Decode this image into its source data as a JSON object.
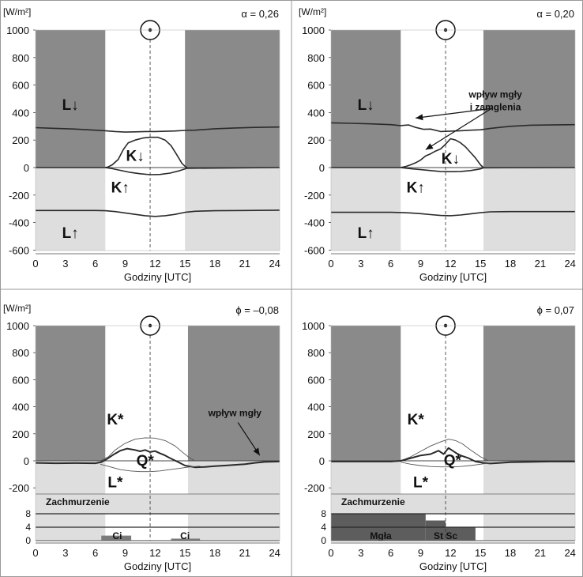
{
  "chart_data": [
    {
      "type": "line",
      "panel": "top-left",
      "unit_label": "[W/m²]",
      "param_label": "α = 0,26",
      "xlabel": "Godziny [UTC]",
      "xticks": [
        0,
        3,
        6,
        9,
        12,
        15,
        18,
        21,
        24
      ],
      "yticks": [
        1000,
        800,
        600,
        400,
        200,
        0,
        -200,
        -400,
        -600
      ],
      "xlim": [
        0,
        24.5
      ],
      "ylim": [
        -600,
        1000
      ],
      "sun_hour": 11.5,
      "night_shading": [
        [
          0,
          7
        ],
        [
          15,
          24.5
        ]
      ],
      "labels": [
        {
          "text": "L↓",
          "x": 3.5,
          "y": 460
        },
        {
          "text": "K↓",
          "x": 10.0,
          "y": 90
        },
        {
          "text": "K↑",
          "x": 8.5,
          "y": -140
        },
        {
          "text": "L↑",
          "x": 3.5,
          "y": -470
        }
      ],
      "series": [
        {
          "x": [
            0,
            2,
            4,
            6,
            7,
            8,
            9,
            10,
            11,
            12,
            13,
            14,
            15,
            16,
            18,
            20,
            22,
            24.5
          ],
          "y": [
            290,
            285,
            280,
            272,
            268,
            262,
            258,
            260,
            262,
            262,
            264,
            266,
            270,
            272,
            282,
            288,
            292,
            295
          ]
        },
        {
          "x": [
            7,
            7.3,
            7.7,
            8.3,
            8.8,
            9.3,
            10,
            10.8,
            11.5,
            12.3,
            13,
            13.6,
            14.2,
            14.7,
            15,
            15.2
          ],
          "y": [
            0,
            5,
            20,
            60,
            130,
            180,
            200,
            215,
            220,
            220,
            200,
            160,
            90,
            30,
            10,
            0
          ]
        },
        {
          "x": [
            0,
            7,
            7.5,
            8.5,
            9.5,
            10.5,
            11.5,
            12.5,
            13.5,
            14.5,
            15.2,
            24.5
          ],
          "y": [
            0,
            0,
            -5,
            -20,
            -35,
            -45,
            -52,
            -50,
            -40,
            -22,
            -5,
            0
          ]
        },
        {
          "x": [
            0,
            3,
            6,
            7,
            8,
            9,
            10,
            11,
            12,
            13,
            14,
            15,
            16,
            18,
            21,
            24.5
          ],
          "y": [
            -312,
            -312,
            -312,
            -314,
            -320,
            -330,
            -340,
            -350,
            -355,
            -350,
            -340,
            -325,
            -318,
            -314,
            -312,
            -310
          ]
        }
      ]
    },
    {
      "type": "line",
      "panel": "top-right",
      "unit_label": "[W/m²]",
      "param_label": "α = 0,20",
      "xlabel": "Godziny [UTC]",
      "xticks": [
        0,
        3,
        6,
        9,
        12,
        15,
        18,
        21,
        24
      ],
      "yticks": [
        1000,
        800,
        600,
        400,
        200,
        0,
        -200,
        -400,
        -600
      ],
      "xlim": [
        0,
        24.5
      ],
      "ylim": [
        -600,
        1000
      ],
      "sun_hour": 11.5,
      "night_shading": [
        [
          0,
          7
        ],
        [
          15.3,
          24.5
        ]
      ],
      "labels": [
        {
          "text": "L↓",
          "x": 3.5,
          "y": 460
        },
        {
          "text": "K↓",
          "x": 12.0,
          "y": 70
        },
        {
          "text": "K↑",
          "x": 8.5,
          "y": -140
        },
        {
          "text": "L↑",
          "x": 3.5,
          "y": -470
        }
      ],
      "annotation": {
        "text": [
          "wpływ mgły",
          "i zamglenia"
        ],
        "x": 16.5,
        "y": 510,
        "arrows": [
          [
            8.5,
            360
          ],
          [
            9.5,
            130
          ]
        ]
      },
      "series": [
        {
          "x": [
            0,
            2,
            4,
            6,
            7,
            7.8,
            8.5,
            9.3,
            10,
            11,
            12,
            13,
            14,
            15,
            16,
            18,
            20,
            22,
            24.5
          ],
          "y": [
            325,
            322,
            318,
            312,
            305,
            310,
            292,
            278,
            280,
            262,
            265,
            268,
            272,
            275,
            285,
            300,
            308,
            310,
            312
          ]
        },
        {
          "x": [
            7,
            7.5,
            8,
            8.5,
            9,
            9.5,
            10,
            10.5,
            11,
            11.5,
            12,
            12.5,
            13,
            13.5,
            14,
            14.5,
            15,
            15.3
          ],
          "y": [
            0,
            8,
            20,
            35,
            55,
            85,
            100,
            120,
            135,
            170,
            210,
            200,
            180,
            150,
            110,
            70,
            20,
            0
          ]
        },
        {
          "x": [
            0,
            7,
            8,
            9,
            10,
            11,
            12,
            13,
            14,
            15,
            15.3,
            24.5
          ],
          "y": [
            0,
            0,
            -8,
            -15,
            -22,
            -28,
            -30,
            -28,
            -22,
            -10,
            -2,
            0
          ]
        },
        {
          "x": [
            0,
            3,
            6,
            7,
            8,
            9,
            10,
            11,
            12,
            13,
            14,
            15,
            16,
            18,
            21,
            24.5
          ],
          "y": [
            -325,
            -325,
            -325,
            -327,
            -330,
            -335,
            -342,
            -348,
            -350,
            -345,
            -337,
            -328,
            -322,
            -320,
            -320,
            -320
          ]
        }
      ]
    },
    {
      "type": "line",
      "panel": "bottom-left",
      "unit_label": "[W/m²]",
      "param_label": "ϕ = –0,08",
      "xlabel": "Godziny [UTC]",
      "xticks": [
        0,
        3,
        6,
        9,
        12,
        15,
        18,
        21,
        24
      ],
      "yticks": [
        1000,
        800,
        600,
        400,
        200,
        0,
        -200
      ],
      "xlim": [
        0,
        24.5
      ],
      "ylim": [
        -300,
        1000
      ],
      "sun_hour": 11.5,
      "night_shading": [
        [
          0,
          7
        ],
        [
          15.3,
          24.5
        ]
      ],
      "labels": [
        {
          "text": "K*",
          "x": 8.0,
          "y": 310
        },
        {
          "text": "Q*",
          "x": 11.0,
          "y": 5
        },
        {
          "text": "L*",
          "x": 8.0,
          "y": -155
        }
      ],
      "annotation": {
        "text": [
          "wpływ mgły"
        ],
        "x": 20.0,
        "y": 330,
        "arrows": [
          [
            22.5,
            40
          ]
        ]
      },
      "cloud": {
        "title": "Zachmurzenie",
        "scale_labels": [
          "8",
          "4",
          "0"
        ],
        "bars": [
          {
            "x0": 6.6,
            "x1": 9.6,
            "h": 1.5
          },
          {
            "x0": 13.6,
            "x1": 16.5,
            "h": 0.6
          }
        ],
        "bar_labels": [
          {
            "text": "Ci",
            "x": 8.2
          },
          {
            "text": "Ci",
            "x": 15.0
          }
        ]
      },
      "series": [
        {
          "x": [
            6.5,
            7.3,
            8,
            9,
            10,
            11,
            12,
            13,
            14,
            14.8,
            15.5,
            16
          ],
          "y": [
            0,
            30,
            80,
            130,
            160,
            170,
            168,
            150,
            110,
            60,
            20,
            0
          ],
          "style": "thin"
        },
        {
          "x": [
            0,
            2,
            4,
            6,
            6.6,
            7.2,
            7.8,
            8.5,
            9.2,
            10,
            10.5,
            11,
            11.5,
            12,
            12.5,
            13,
            13.5,
            14.2,
            15,
            16,
            17,
            18,
            19,
            20,
            21,
            22,
            23,
            24.5
          ],
          "y": [
            -15,
            -18,
            -17,
            -18,
            -10,
            15,
            45,
            75,
            90,
            80,
            70,
            80,
            65,
            72,
            55,
            40,
            20,
            -5,
            -35,
            -48,
            -45,
            -40,
            -35,
            -30,
            -25,
            -15,
            -8,
            -5
          ],
          "style": "bold"
        },
        {
          "x": [
            6.5,
            7.5,
            8.5,
            9.5,
            10.5,
            11.5,
            12.5,
            13.5,
            14.5,
            15.5,
            16.5
          ],
          "y": [
            -25,
            -45,
            -65,
            -75,
            -80,
            -80,
            -75,
            -65,
            -55,
            -45,
            -40
          ],
          "style": "thin"
        }
      ]
    },
    {
      "type": "line",
      "panel": "bottom-right",
      "unit_label": "",
      "param_label": "ϕ = 0,07",
      "xlabel": "Godziny [UTC]",
      "xticks": [
        0,
        3,
        6,
        9,
        12,
        15,
        18,
        21,
        24
      ],
      "yticks": [
        1000,
        800,
        600,
        400,
        200,
        0,
        -200
      ],
      "xlim": [
        0,
        24.5
      ],
      "ylim": [
        -300,
        1000
      ],
      "sun_hour": 11.5,
      "night_shading": [
        [
          0,
          7
        ],
        [
          15.3,
          24.5
        ]
      ],
      "labels": [
        {
          "text": "K*",
          "x": 8.5,
          "y": 310
        },
        {
          "text": "Q*",
          "x": 12.2,
          "y": 10
        },
        {
          "text": "L*",
          "x": 9.0,
          "y": -155
        }
      ],
      "cloud": {
        "title": "Zachmurzenie",
        "scale_labels": [
          "8",
          "4",
          "0"
        ],
        "bars": [
          {
            "x0": 0,
            "x1": 9.5,
            "h": 8
          },
          {
            "x0": 9.5,
            "x1": 11.5,
            "h": 6
          },
          {
            "x0": 11.5,
            "x1": 14.5,
            "h": 4
          }
        ],
        "bar_labels": [
          {
            "text": "Mgła",
            "x": 5.0
          },
          {
            "text": "St Sc",
            "x": 11.5
          }
        ]
      },
      "series": [
        {
          "x": [
            7,
            8,
            9,
            10,
            11,
            11.8,
            12.5,
            13.2,
            14,
            15,
            15.8
          ],
          "y": [
            0,
            30,
            70,
            110,
            140,
            160,
            150,
            125,
            80,
            30,
            0
          ],
          "style": "thin"
        },
        {
          "x": [
            0,
            3,
            6,
            7,
            8,
            9,
            10,
            10.8,
            11.3,
            11.8,
            12.5,
            13,
            13.8,
            14.5,
            15.3,
            16,
            17,
            18,
            20,
            22,
            24.5
          ],
          "y": [
            -5,
            -5,
            -5,
            0,
            20,
            40,
            50,
            75,
            50,
            95,
            60,
            40,
            20,
            -5,
            -15,
            -20,
            -15,
            -10,
            -8,
            -5,
            -5
          ],
          "style": "bold"
        },
        {
          "x": [
            7,
            8,
            9,
            10,
            11,
            12,
            13,
            14,
            15,
            16
          ],
          "y": [
            -10,
            -25,
            -35,
            -42,
            -45,
            -45,
            -42,
            -35,
            -25,
            -15
          ],
          "style": "thin"
        }
      ]
    }
  ],
  "colors": {
    "night": "#8a8a8a",
    "lower": "#dedede",
    "line": "#2a2a2a",
    "text": "#111111",
    "cloud_bar": "#7a7a7a",
    "mist_bar": "#5d5d5d"
  }
}
